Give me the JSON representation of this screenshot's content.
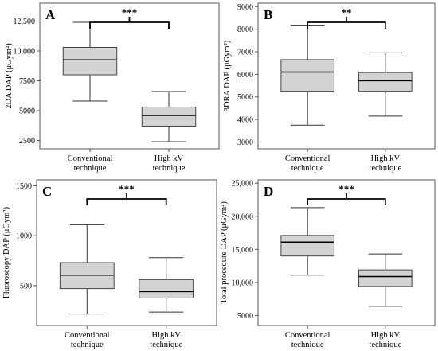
{
  "chart_data": [
    {
      "type": "box",
      "panel_label": "A",
      "ylabel": "2DA DAP (μGym²)",
      "ylim": [
        1800,
        14000
      ],
      "yticks": [
        2500,
        5000,
        7500,
        10000,
        12500
      ],
      "ytick_labels": [
        "2500",
        "5000",
        "7500",
        "10,000",
        "12,500"
      ],
      "categories": [
        "Conventional technique",
        "High kV technique"
      ],
      "category_lines": [
        [
          "Conventional",
          "technique"
        ],
        [
          "High kV",
          "technique"
        ]
      ],
      "boxes": [
        {
          "min": 5800,
          "q1": 8000,
          "median": 9250,
          "q3": 10300,
          "max": 12400
        },
        {
          "min": 2400,
          "q1": 3700,
          "median": 4600,
          "q3": 5300,
          "max": 6600
        }
      ],
      "significance": "***"
    },
    {
      "type": "box",
      "panel_label": "B",
      "ylabel": "3DRA DAP (μGym²)",
      "ylim": [
        2700,
        9150
      ],
      "yticks": [
        3000,
        4000,
        5000,
        6000,
        7000,
        8000,
        9000
      ],
      "ytick_labels": [
        "3000",
        "4000",
        "5000",
        "6000",
        "7000",
        "8000",
        "9000"
      ],
      "categories": [
        "Conventional technique",
        "High kV technique"
      ],
      "category_lines": [
        [
          "Conventional",
          "technique"
        ],
        [
          "High kV",
          "technique"
        ]
      ],
      "boxes": [
        {
          "min": 3750,
          "q1": 5250,
          "median": 6100,
          "q3": 6650,
          "max": 8150
        },
        {
          "min": 4150,
          "q1": 5250,
          "median": 5720,
          "q3": 6080,
          "max": 6950
        }
      ],
      "significance": "**"
    },
    {
      "type": "box",
      "panel_label": "C",
      "ylabel": "Fluoroscopy DAP (μGym²)",
      "ylim": [
        100,
        1560
      ],
      "yticks": [
        500,
        1000,
        1500
      ],
      "ytick_labels": [
        "500",
        "1000",
        "1500"
      ],
      "categories": [
        "Conventional technique",
        "High kV technique"
      ],
      "category_lines": [
        [
          "Conventional",
          "technique"
        ],
        [
          "High kV",
          "technique"
        ]
      ],
      "boxes": [
        {
          "min": 215,
          "q1": 470,
          "median": 605,
          "q3": 730,
          "max": 1110
        },
        {
          "min": 235,
          "q1": 375,
          "median": 440,
          "q3": 560,
          "max": 780
        }
      ],
      "significance": "***"
    },
    {
      "type": "box",
      "panel_label": "D",
      "ylabel": "Total procedure DAP (μGym²)",
      "ylim": [
        3500,
        25500
      ],
      "yticks": [
        5000,
        10000,
        15000,
        20000,
        25000
      ],
      "ytick_labels": [
        "5000",
        "10,000",
        "15,000",
        "20,000",
        "25,000"
      ],
      "categories": [
        "Conventional technique",
        "High kV technique"
      ],
      "category_lines": [
        [
          "Conventional",
          "technique"
        ],
        [
          "High kV",
          "technique"
        ]
      ],
      "boxes": [
        {
          "min": 11100,
          "q1": 14000,
          "median": 16100,
          "q3": 17100,
          "max": 21300
        },
        {
          "min": 6400,
          "q1": 9400,
          "median": 10900,
          "q3": 11900,
          "max": 14300
        }
      ],
      "significance": "***"
    }
  ]
}
